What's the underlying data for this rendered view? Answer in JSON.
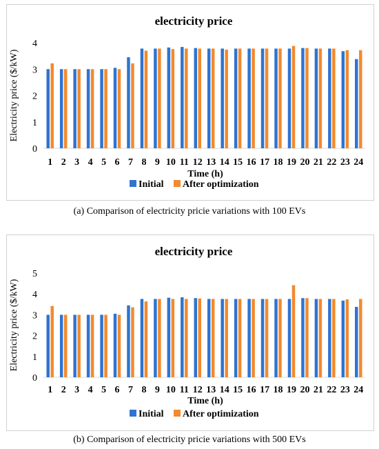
{
  "chart_data": [
    {
      "type": "bar",
      "title": "electricity price",
      "xlabel": "Time (h)",
      "ylabel": "Electricity price ($/kW)",
      "ylim": [
        0,
        4
      ],
      "yticks": [
        0,
        1,
        2,
        3,
        4
      ],
      "grid": false,
      "legend": "bottom",
      "categories": [
        "1",
        "2",
        "3",
        "4",
        "5",
        "6",
        "7",
        "8",
        "9",
        "10",
        "11",
        "12",
        "13",
        "14",
        "15",
        "16",
        "17",
        "18",
        "19",
        "20",
        "21",
        "22",
        "23",
        "24"
      ],
      "series": [
        {
          "name": "Initial",
          "color": "#2f74d0",
          "values": [
            3.0,
            3.0,
            3.0,
            3.0,
            3.0,
            3.05,
            3.45,
            3.78,
            3.78,
            3.82,
            3.84,
            3.8,
            3.78,
            3.78,
            3.78,
            3.78,
            3.78,
            3.78,
            3.78,
            3.8,
            3.78,
            3.78,
            3.68,
            3.38
          ]
        },
        {
          "name": "After optimization",
          "color": "#f28a2e",
          "values": [
            3.22,
            3.0,
            3.0,
            3.0,
            3.0,
            3.0,
            3.22,
            3.7,
            3.78,
            3.76,
            3.78,
            3.78,
            3.78,
            3.74,
            3.78,
            3.78,
            3.78,
            3.78,
            3.88,
            3.8,
            3.78,
            3.78,
            3.72,
            3.72
          ]
        }
      ],
      "caption": "(a) Comparison of electricity pricie variations with 100 EVs"
    },
    {
      "type": "bar",
      "title": "electricity price",
      "xlabel": "Time (h)",
      "ylabel": "Electricity price ($/kW)",
      "ylim": [
        0,
        5
      ],
      "yticks": [
        0,
        1,
        2,
        3,
        4,
        5
      ],
      "grid": false,
      "legend": "bottom",
      "categories": [
        "1",
        "2",
        "3",
        "4",
        "5",
        "6",
        "7",
        "8",
        "9",
        "10",
        "11",
        "12",
        "13",
        "14",
        "15",
        "16",
        "17",
        "18",
        "19",
        "20",
        "21",
        "22",
        "23",
        "24"
      ],
      "series": [
        {
          "name": "Initial",
          "color": "#2f74d0",
          "values": [
            3.0,
            3.0,
            3.0,
            3.0,
            3.0,
            3.05,
            3.45,
            3.76,
            3.76,
            3.82,
            3.84,
            3.8,
            3.76,
            3.76,
            3.76,
            3.76,
            3.76,
            3.76,
            3.76,
            3.8,
            3.76,
            3.76,
            3.68,
            3.38
          ]
        },
        {
          "name": "After optimization",
          "color": "#f28a2e",
          "values": [
            3.42,
            3.0,
            3.0,
            3.0,
            3.0,
            3.0,
            3.36,
            3.64,
            3.76,
            3.76,
            3.76,
            3.78,
            3.76,
            3.76,
            3.76,
            3.76,
            3.76,
            3.76,
            4.42,
            3.8,
            3.76,
            3.76,
            3.74,
            3.76
          ]
        }
      ],
      "caption": "(b) Comparison of electricity pricie variations with 500 EVs"
    }
  ]
}
